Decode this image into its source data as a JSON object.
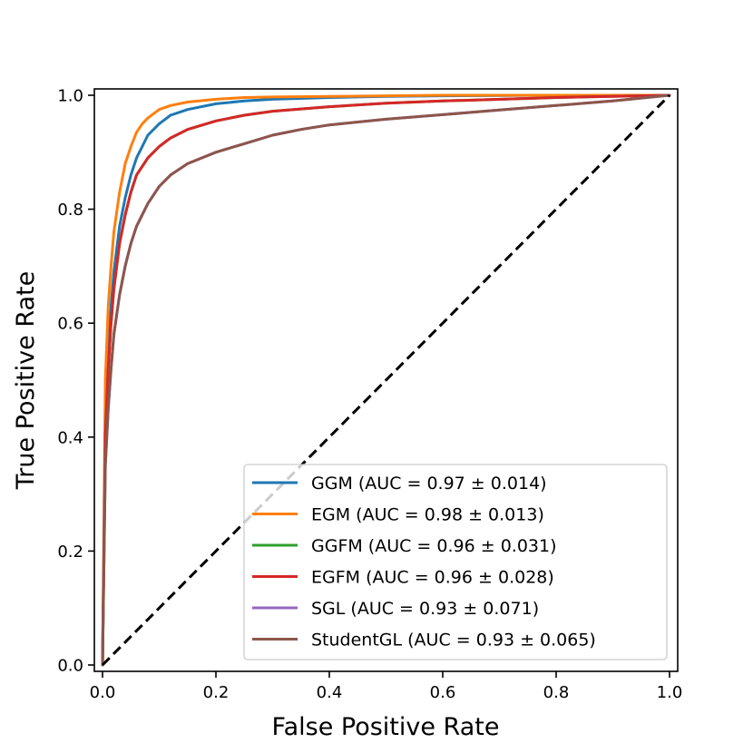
{
  "chart_data": {
    "type": "line",
    "title": "",
    "xlabel": "False Positive Rate",
    "ylabel": "True Positive Rate",
    "xlim": [
      0.0,
      1.0
    ],
    "ylim": [
      0.0,
      1.0
    ],
    "xticks": [
      0.0,
      0.2,
      0.4,
      0.6,
      0.8,
      1.0
    ],
    "yticks": [
      0.0,
      0.2,
      0.4,
      0.6,
      0.8,
      1.0
    ],
    "xtick_labels": [
      "0.0",
      "0.2",
      "0.4",
      "0.6",
      "0.8",
      "1.0"
    ],
    "ytick_labels": [
      "0.0",
      "0.2",
      "0.4",
      "0.6",
      "0.8",
      "1.0"
    ],
    "grid": false,
    "legend_position": "bottom-right",
    "diagonal": {
      "name": "chance",
      "x": [
        0,
        1
      ],
      "y": [
        0,
        1
      ],
      "color": "#000000",
      "style": "dashed"
    },
    "series": [
      {
        "name": "GGM (AUC = 0.97 ± 0.014)",
        "color": "#1f77b4",
        "x": [
          0.0,
          0.005,
          0.01,
          0.015,
          0.02,
          0.03,
          0.04,
          0.05,
          0.06,
          0.07,
          0.08,
          0.1,
          0.12,
          0.15,
          0.2,
          0.25,
          0.3,
          0.4,
          0.5,
          0.6,
          0.8,
          1.0
        ],
        "y": [
          0.0,
          0.42,
          0.55,
          0.63,
          0.69,
          0.77,
          0.82,
          0.86,
          0.89,
          0.91,
          0.93,
          0.95,
          0.965,
          0.975,
          0.985,
          0.99,
          0.993,
          0.996,
          0.998,
          0.999,
          1.0,
          1.0
        ]
      },
      {
        "name": "EGM (AUC = 0.98 ± 0.013)",
        "color": "#ff7f0e",
        "x": [
          0.0,
          0.005,
          0.01,
          0.015,
          0.02,
          0.03,
          0.04,
          0.05,
          0.06,
          0.07,
          0.08,
          0.1,
          0.12,
          0.15,
          0.2,
          0.25,
          0.3,
          0.4,
          0.5,
          0.6,
          0.8,
          1.0
        ],
        "y": [
          0.0,
          0.5,
          0.63,
          0.7,
          0.76,
          0.83,
          0.88,
          0.91,
          0.935,
          0.95,
          0.96,
          0.975,
          0.982,
          0.988,
          0.993,
          0.996,
          0.997,
          0.998,
          0.999,
          1.0,
          1.0,
          1.0
        ]
      },
      {
        "name": "GGFM (AUC = 0.96 ± 0.031)",
        "color": "#2ca02c",
        "x": [
          0.0,
          0.005,
          0.01,
          0.015,
          0.02,
          0.03,
          0.04,
          0.05,
          0.06,
          0.08,
          0.1,
          0.12,
          0.15,
          0.2,
          0.25,
          0.3,
          0.4,
          0.5,
          0.6,
          0.8,
          1.0
        ],
        "y": [
          0.0,
          0.4,
          0.52,
          0.6,
          0.66,
          0.74,
          0.79,
          0.83,
          0.86,
          0.89,
          0.91,
          0.925,
          0.94,
          0.955,
          0.965,
          0.972,
          0.98,
          0.986,
          0.99,
          0.996,
          1.0
        ]
      },
      {
        "name": "EGFM (AUC = 0.96 ± 0.028)",
        "color": "#d62728",
        "x": [
          0.0,
          0.005,
          0.01,
          0.015,
          0.02,
          0.03,
          0.04,
          0.05,
          0.06,
          0.08,
          0.1,
          0.12,
          0.15,
          0.2,
          0.25,
          0.3,
          0.4,
          0.5,
          0.6,
          0.8,
          1.0
        ],
        "y": [
          0.0,
          0.4,
          0.52,
          0.6,
          0.66,
          0.74,
          0.79,
          0.83,
          0.86,
          0.89,
          0.91,
          0.925,
          0.94,
          0.955,
          0.965,
          0.972,
          0.98,
          0.986,
          0.99,
          0.996,
          1.0
        ]
      },
      {
        "name": "SGL (AUC = 0.93 ± 0.071)",
        "color": "#9467bd",
        "x": [
          0.0,
          0.005,
          0.01,
          0.015,
          0.02,
          0.03,
          0.04,
          0.05,
          0.06,
          0.08,
          0.1,
          0.12,
          0.15,
          0.2,
          0.25,
          0.3,
          0.35,
          0.4,
          0.5,
          0.6,
          0.7,
          0.8,
          0.9,
          1.0
        ],
        "y": [
          0.0,
          0.35,
          0.45,
          0.52,
          0.58,
          0.65,
          0.7,
          0.74,
          0.77,
          0.81,
          0.84,
          0.86,
          0.88,
          0.9,
          0.915,
          0.93,
          0.94,
          0.948,
          0.958,
          0.966,
          0.974,
          0.982,
          0.99,
          1.0
        ]
      },
      {
        "name": "StudentGL (AUC = 0.93 ± 0.065)",
        "color": "#8c564b",
        "x": [
          0.0,
          0.005,
          0.01,
          0.015,
          0.02,
          0.03,
          0.04,
          0.05,
          0.06,
          0.08,
          0.1,
          0.12,
          0.15,
          0.2,
          0.25,
          0.3,
          0.35,
          0.4,
          0.5,
          0.6,
          0.7,
          0.8,
          0.9,
          1.0
        ],
        "y": [
          0.0,
          0.35,
          0.45,
          0.52,
          0.58,
          0.65,
          0.7,
          0.74,
          0.77,
          0.81,
          0.84,
          0.86,
          0.88,
          0.9,
          0.915,
          0.93,
          0.94,
          0.948,
          0.958,
          0.966,
          0.974,
          0.982,
          0.99,
          1.0
        ]
      }
    ]
  }
}
